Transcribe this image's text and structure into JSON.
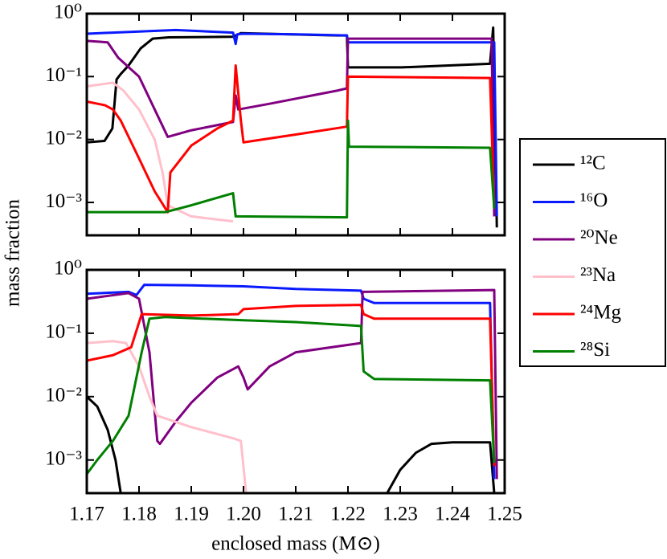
{
  "chart_data": [
    {
      "type": "line",
      "log_y": true,
      "ylabel": "mass fraction",
      "xlim": [
        1.17,
        1.25
      ],
      "ylim": [
        0.0003,
        1
      ],
      "yticks": [
        {
          "value": 1,
          "label": "10⁰"
        },
        {
          "value": 0.1,
          "label": "10⁻¹"
        },
        {
          "value": 0.01,
          "label": "10⁻²"
        },
        {
          "value": 0.001,
          "label": "10⁻³"
        }
      ],
      "series": [
        {
          "name": "¹²C",
          "color": "#000000",
          "x": [
            1.17,
            1.1734,
            1.1749,
            1.1757,
            1.1765,
            1.178,
            1.1803,
            1.1826,
            1.1857,
            1.198,
            1.1995,
            1.218,
            1.2198,
            1.22,
            1.2303,
            1.2472,
            1.2478,
            1.2485
          ],
          "values": [
            0.009,
            0.0095,
            0.015,
            0.09,
            0.11,
            0.15,
            0.28,
            0.4,
            0.42,
            0.43,
            0.49,
            0.45,
            0.45,
            0.14,
            0.14,
            0.16,
            0.6,
            0.0004
          ]
        },
        {
          "name": "¹⁶O",
          "color": "#0a1aff",
          "x": [
            1.17,
            1.175,
            1.187,
            1.198,
            1.1985,
            1.1988,
            1.2,
            1.21,
            1.2198,
            1.22,
            1.2472,
            1.248,
            1.2485
          ],
          "values": [
            0.48,
            0.5,
            0.55,
            0.5,
            0.33,
            0.47,
            0.48,
            0.47,
            0.45,
            0.35,
            0.35,
            0.35,
            0.0006
          ]
        },
        {
          "name": "²⁰Ne",
          "color": "#800080",
          "x": [
            1.17,
            1.174,
            1.176,
            1.18,
            1.183,
            1.1855,
            1.19,
            1.198,
            1.1985,
            1.199,
            1.205,
            1.218,
            1.2198,
            1.22,
            1.2475,
            1.248
          ],
          "values": [
            0.37,
            0.35,
            0.2,
            0.1,
            0.03,
            0.011,
            0.014,
            0.019,
            0.05,
            0.03,
            0.037,
            0.06,
            0.065,
            0.4,
            0.4,
            0.0006
          ]
        },
        {
          "name": "²³Na",
          "color": "#ffc0cb",
          "x": [
            1.17,
            1.175,
            1.177,
            1.18,
            1.183,
            1.1845,
            1.1855,
            1.19,
            1.198
          ],
          "values": [
            0.07,
            0.08,
            0.06,
            0.03,
            0.01,
            0.003,
            0.0009,
            0.0006,
            0.0005
          ]
        },
        {
          "name": "²⁴Mg",
          "color": "#ff0000",
          "x": [
            1.17,
            1.1735,
            1.175,
            1.1765,
            1.18,
            1.183,
            1.1855,
            1.186,
            1.19,
            1.195,
            1.198,
            1.1985,
            1.1995,
            1.2,
            1.21,
            1.2198,
            1.22,
            1.2472,
            1.248
          ],
          "values": [
            0.04,
            0.035,
            0.03,
            0.02,
            0.005,
            0.0015,
            0.0007,
            0.003,
            0.008,
            0.015,
            0.02,
            0.15,
            0.02,
            0.009,
            0.012,
            0.016,
            0.1,
            0.095,
            0.0008
          ]
        },
        {
          "name": "²⁸Si",
          "color": "#008000",
          "x": [
            1.17,
            1.185,
            1.19,
            1.198,
            1.1985,
            1.2198,
            1.22,
            1.2202,
            1.2472,
            1.248
          ],
          "values": [
            0.0007,
            0.0007,
            0.0009,
            0.0014,
            0.0006,
            0.00058,
            0.02,
            0.0077,
            0.0074,
            0.0008
          ]
        }
      ]
    },
    {
      "type": "line",
      "log_y": true,
      "xlabel": "enclosed mass (M⊙)",
      "xlim": [
        1.17,
        1.25
      ],
      "ylim": [
        0.0003,
        1
      ],
      "xticks": [
        1.17,
        1.18,
        1.19,
        {
          "value": 1.2,
          "label": "1.20"
        },
        1.21,
        1.22,
        1.23,
        1.24,
        1.25
      ],
      "yticks": [
        {
          "value": 1,
          "label": "10⁰"
        },
        {
          "value": 0.1,
          "label": "10⁻¹"
        },
        {
          "value": 0.01,
          "label": "10⁻²"
        },
        {
          "value": 0.001,
          "label": "10⁻³"
        }
      ],
      "series": [
        {
          "color": "#000000",
          "x": [
            1.17,
            1.172,
            1.174,
            1.1755,
            1.1765,
            1.2,
            1.2275,
            1.23,
            1.233,
            1.236,
            1.24,
            1.2472,
            1.248
          ],
          "values": [
            0.01,
            0.007,
            0.003,
            0.001,
            0.0003,
            null,
            0.0003,
            0.0007,
            0.0013,
            0.0018,
            0.0019,
            0.0019,
            0.0003
          ]
        },
        {
          "color": "#0a1aff",
          "x": [
            1.17,
            1.178,
            1.1795,
            1.181,
            1.19,
            1.2,
            1.21,
            1.2225,
            1.223,
            1.225,
            1.2472,
            1.248
          ],
          "values": [
            0.42,
            0.45,
            0.4,
            0.58,
            0.57,
            0.55,
            0.5,
            0.47,
            0.35,
            0.3,
            0.3,
            0.0005
          ]
        },
        {
          "color": "#800080",
          "x": [
            1.17,
            1.178,
            1.18,
            1.182,
            1.1835,
            1.184,
            1.187,
            1.19,
            1.195,
            1.199,
            1.2,
            1.2008,
            1.205,
            1.21,
            1.2225,
            1.2228,
            1.248,
            1.2485
          ],
          "values": [
            0.35,
            0.43,
            0.35,
            0.05,
            0.002,
            0.0018,
            0.004,
            0.008,
            0.02,
            0.03,
            0.02,
            0.013,
            0.03,
            0.05,
            0.07,
            0.45,
            0.48,
            0.0005
          ]
        },
        {
          "color": "#ffc0cb",
          "x": [
            1.17,
            1.175,
            1.1775,
            1.18,
            1.182,
            1.1835,
            1.19,
            1.198,
            1.1995,
            1.2005
          ],
          "values": [
            0.07,
            0.075,
            0.07,
            0.03,
            0.01,
            0.005,
            0.0033,
            0.0022,
            0.002,
            0.0003
          ]
        },
        {
          "color": "#ff0000",
          "x": [
            1.17,
            1.175,
            1.1785,
            1.1805,
            1.19,
            1.199,
            1.2,
            1.21,
            1.2225,
            1.223,
            1.225,
            1.2472,
            1.248
          ],
          "values": [
            0.037,
            0.045,
            0.06,
            0.2,
            0.19,
            0.2,
            0.24,
            0.27,
            0.28,
            0.2,
            0.17,
            0.17,
            0.0008
          ]
        },
        {
          "color": "#008000",
          "x": [
            1.17,
            1.172,
            1.175,
            1.178,
            1.1805,
            1.182,
            1.185,
            1.2,
            1.21,
            1.2225,
            1.223,
            1.225,
            1.2472,
            1.248
          ],
          "values": [
            0.0006,
            0.001,
            0.002,
            0.005,
            0.05,
            0.17,
            0.18,
            0.16,
            0.15,
            0.13,
            0.025,
            0.019,
            0.018,
            0.0009
          ]
        }
      ]
    }
  ]
}
